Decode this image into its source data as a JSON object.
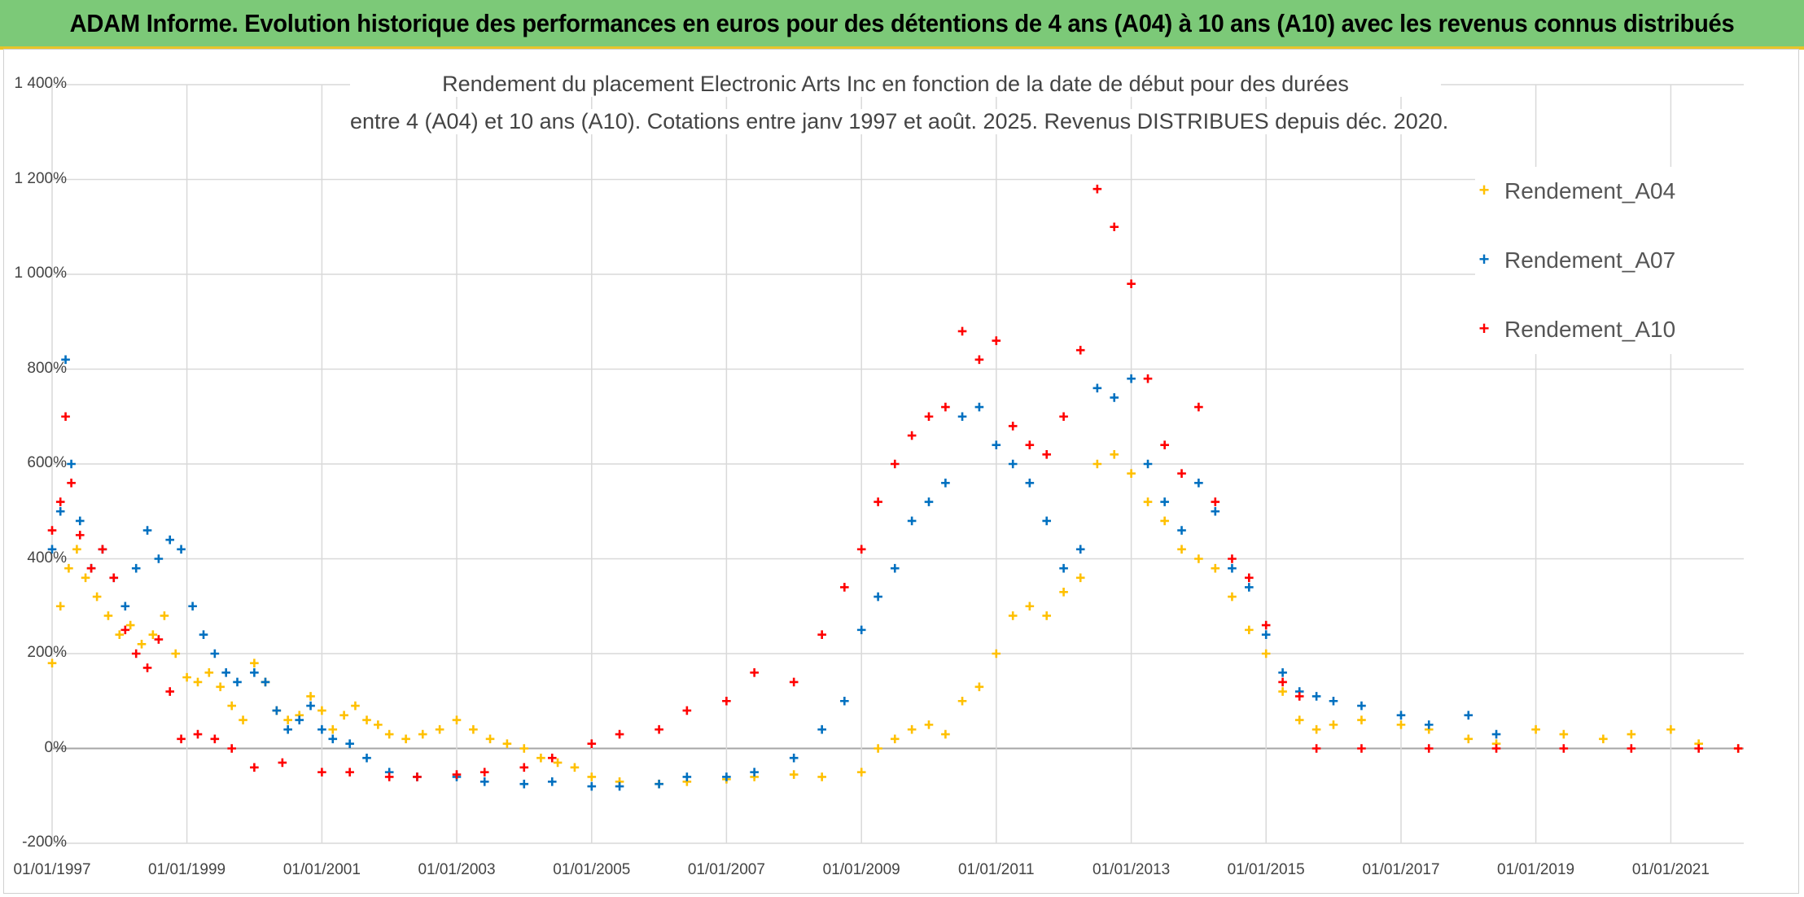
{
  "banner": {
    "title": "ADAM Informe. Evolution historique des performances en euros pour des détentions de 4 ans (A04) à 10 ans (A10) avec les revenus connus distribués"
  },
  "colors": {
    "banner_bg": "#7cc978",
    "banner_border": "#e8c42a",
    "gridline": "#d9d9d9",
    "zero_line": "#a6a6a6"
  },
  "chart_data": {
    "type": "scatter",
    "title_lines": [
      "Rendement du placement Electronic Arts Inc en fonction de la date de début pour des durées",
      "entre 4 (A04) et 10 ans (A10). Cotations entre janv 1997 et août. 2025. Revenus DISTRIBUES depuis déc. 2020."
    ],
    "xlabel": "",
    "ylabel": "",
    "xlim": [
      "1997-01-01",
      "2022-01-31"
    ],
    "ylim": [
      -200,
      1400
    ],
    "y_ticks": [
      {
        "value": 1400,
        "label": "1 400%"
      },
      {
        "value": 1200,
        "label": "1 200%"
      },
      {
        "value": 1000,
        "label": "1 000%"
      },
      {
        "value": 800,
        "label": "800%"
      },
      {
        "value": 600,
        "label": "600%"
      },
      {
        "value": 400,
        "label": "400%"
      },
      {
        "value": 200,
        "label": "200%"
      },
      {
        "value": 0,
        "label": "0%"
      },
      {
        "value": -200,
        "label": "-200%"
      }
    ],
    "x_ticks": [
      {
        "date": "1997-01-01",
        "label": "01/01/1997"
      },
      {
        "date": "1999-01-01",
        "label": "01/01/1999"
      },
      {
        "date": "2001-01-01",
        "label": "01/01/2001"
      },
      {
        "date": "2003-01-01",
        "label": "01/01/2003"
      },
      {
        "date": "2005-01-01",
        "label": "01/01/2005"
      },
      {
        "date": "2007-01-01",
        "label": "01/01/2007"
      },
      {
        "date": "2009-01-01",
        "label": "01/01/2009"
      },
      {
        "date": "2011-01-01",
        "label": "01/01/2011"
      },
      {
        "date": "2013-01-01",
        "label": "01/01/2013"
      },
      {
        "date": "2015-01-01",
        "label": "01/01/2015"
      },
      {
        "date": "2017-01-01",
        "label": "01/01/2017"
      },
      {
        "date": "2019-01-01",
        "label": "01/01/2019"
      },
      {
        "date": "2021-01-01",
        "label": "01/01/2021"
      }
    ],
    "grid": true,
    "legend_position": "top-right",
    "marker": "+",
    "series": [
      {
        "name": "Rendement_A04",
        "color": "#ffc000",
        "points": [
          [
            "1997-01-01",
            180
          ],
          [
            "1997-02-15",
            300
          ],
          [
            "1997-04-01",
            380
          ],
          [
            "1997-05-15",
            420
          ],
          [
            "1997-07-01",
            360
          ],
          [
            "1997-09-01",
            320
          ],
          [
            "1997-11-01",
            280
          ],
          [
            "1998-01-01",
            240
          ],
          [
            "1998-03-01",
            260
          ],
          [
            "1998-05-01",
            220
          ],
          [
            "1998-07-01",
            240
          ],
          [
            "1998-09-01",
            280
          ],
          [
            "1998-11-01",
            200
          ],
          [
            "1999-01-01",
            150
          ],
          [
            "1999-03-01",
            140
          ],
          [
            "1999-05-01",
            160
          ],
          [
            "1999-07-01",
            130
          ],
          [
            "1999-09-01",
            90
          ],
          [
            "1999-11-01",
            60
          ],
          [
            "2000-01-01",
            180
          ],
          [
            "2000-03-01",
            140
          ],
          [
            "2000-05-01",
            80
          ],
          [
            "2000-07-01",
            60
          ],
          [
            "2000-09-01",
            70
          ],
          [
            "2000-11-01",
            110
          ],
          [
            "2001-01-01",
            80
          ],
          [
            "2001-03-01",
            40
          ],
          [
            "2001-05-01",
            70
          ],
          [
            "2001-07-01",
            90
          ],
          [
            "2001-09-01",
            60
          ],
          [
            "2001-11-01",
            50
          ],
          [
            "2002-01-01",
            30
          ],
          [
            "2002-04-01",
            20
          ],
          [
            "2002-07-01",
            30
          ],
          [
            "2002-10-01",
            40
          ],
          [
            "2003-01-01",
            60
          ],
          [
            "2003-04-01",
            40
          ],
          [
            "2003-07-01",
            20
          ],
          [
            "2003-10-01",
            10
          ],
          [
            "2004-01-01",
            0
          ],
          [
            "2004-04-01",
            -20
          ],
          [
            "2004-07-01",
            -30
          ],
          [
            "2004-10-01",
            -40
          ],
          [
            "2005-01-01",
            -60
          ],
          [
            "2005-06-01",
            -70
          ],
          [
            "2006-01-01",
            -75
          ],
          [
            "2006-06-01",
            -70
          ],
          [
            "2007-01-01",
            -65
          ],
          [
            "2007-06-01",
            -60
          ],
          [
            "2008-01-01",
            -55
          ],
          [
            "2008-06-01",
            -60
          ],
          [
            "2009-01-01",
            -50
          ],
          [
            "2009-04-01",
            0
          ],
          [
            "2009-07-01",
            20
          ],
          [
            "2009-10-01",
            40
          ],
          [
            "2010-01-01",
            50
          ],
          [
            "2010-04-01",
            30
          ],
          [
            "2010-07-01",
            100
          ],
          [
            "2010-10-01",
            130
          ],
          [
            "2011-01-01",
            200
          ],
          [
            "2011-04-01",
            280
          ],
          [
            "2011-07-01",
            300
          ],
          [
            "2011-10-01",
            280
          ],
          [
            "2012-01-01",
            330
          ],
          [
            "2012-04-01",
            360
          ],
          [
            "2012-07-01",
            600
          ],
          [
            "2012-10-01",
            620
          ],
          [
            "2013-01-01",
            580
          ],
          [
            "2013-04-01",
            520
          ],
          [
            "2013-07-01",
            480
          ],
          [
            "2013-10-01",
            420
          ],
          [
            "2014-01-01",
            400
          ],
          [
            "2014-04-01",
            380
          ],
          [
            "2014-07-01",
            320
          ],
          [
            "2014-10-01",
            250
          ],
          [
            "2015-01-01",
            200
          ],
          [
            "2015-04-01",
            120
          ],
          [
            "2015-07-01",
            60
          ],
          [
            "2015-10-01",
            40
          ],
          [
            "2016-01-01",
            50
          ],
          [
            "2016-06-01",
            60
          ],
          [
            "2017-01-01",
            50
          ],
          [
            "2017-06-01",
            40
          ],
          [
            "2018-01-01",
            20
          ],
          [
            "2018-06-01",
            10
          ],
          [
            "2019-01-01",
            40
          ],
          [
            "2019-06-01",
            30
          ],
          [
            "2020-01-01",
            20
          ],
          [
            "2020-06-01",
            30
          ],
          [
            "2021-01-01",
            40
          ],
          [
            "2021-06-01",
            10
          ],
          [
            "2022-01-01",
            0
          ]
        ]
      },
      {
        "name": "Rendement_A07",
        "color": "#0070c0",
        "points": [
          [
            "1997-01-01",
            420
          ],
          [
            "1997-02-15",
            500
          ],
          [
            "1997-03-15",
            820
          ],
          [
            "1997-04-15",
            600
          ],
          [
            "1997-06-01",
            480
          ],
          [
            "1997-08-01",
            380
          ],
          [
            "1997-10-01",
            420
          ],
          [
            "1997-12-01",
            360
          ],
          [
            "1998-02-01",
            300
          ],
          [
            "1998-04-01",
            380
          ],
          [
            "1998-06-01",
            460
          ],
          [
            "1998-08-01",
            400
          ],
          [
            "1998-10-01",
            440
          ],
          [
            "1998-12-01",
            420
          ],
          [
            "1999-02-01",
            300
          ],
          [
            "1999-04-01",
            240
          ],
          [
            "1999-06-01",
            200
          ],
          [
            "1999-08-01",
            160
          ],
          [
            "1999-10-01",
            140
          ],
          [
            "2000-01-01",
            160
          ],
          [
            "2000-03-01",
            140
          ],
          [
            "2000-05-01",
            80
          ],
          [
            "2000-07-01",
            40
          ],
          [
            "2000-09-01",
            60
          ],
          [
            "2000-11-01",
            90
          ],
          [
            "2001-01-01",
            40
          ],
          [
            "2001-03-01",
            20
          ],
          [
            "2001-06-01",
            10
          ],
          [
            "2001-09-01",
            -20
          ],
          [
            "2002-01-01",
            -50
          ],
          [
            "2002-06-01",
            -60
          ],
          [
            "2003-01-01",
            -60
          ],
          [
            "2003-06-01",
            -70
          ],
          [
            "2004-01-01",
            -75
          ],
          [
            "2004-06-01",
            -70
          ],
          [
            "2005-01-01",
            -80
          ],
          [
            "2005-06-01",
            -80
          ],
          [
            "2006-01-01",
            -75
          ],
          [
            "2006-06-01",
            -60
          ],
          [
            "2007-01-01",
            -60
          ],
          [
            "2007-06-01",
            -50
          ],
          [
            "2008-01-01",
            -20
          ],
          [
            "2008-06-01",
            40
          ],
          [
            "2008-10-01",
            100
          ],
          [
            "2009-01-01",
            250
          ],
          [
            "2009-04-01",
            320
          ],
          [
            "2009-07-01",
            380
          ],
          [
            "2009-10-01",
            480
          ],
          [
            "2010-01-01",
            520
          ],
          [
            "2010-04-01",
            560
          ],
          [
            "2010-07-01",
            700
          ],
          [
            "2010-10-01",
            720
          ],
          [
            "2011-01-01",
            640
          ],
          [
            "2011-04-01",
            600
          ],
          [
            "2011-07-01",
            560
          ],
          [
            "2011-10-01",
            480
          ],
          [
            "2012-01-01",
            380
          ],
          [
            "2012-04-01",
            420
          ],
          [
            "2012-07-01",
            760
          ],
          [
            "2012-10-01",
            740
          ],
          [
            "2013-01-01",
            780
          ],
          [
            "2013-04-01",
            600
          ],
          [
            "2013-07-01",
            520
          ],
          [
            "2013-10-01",
            460
          ],
          [
            "2014-01-01",
            560
          ],
          [
            "2014-04-01",
            500
          ],
          [
            "2014-07-01",
            380
          ],
          [
            "2014-10-01",
            340
          ],
          [
            "2015-01-01",
            240
          ],
          [
            "2015-04-01",
            160
          ],
          [
            "2015-07-01",
            120
          ],
          [
            "2015-10-01",
            110
          ],
          [
            "2016-01-01",
            100
          ],
          [
            "2016-06-01",
            90
          ],
          [
            "2017-01-01",
            70
          ],
          [
            "2017-06-01",
            50
          ],
          [
            "2018-01-01",
            70
          ],
          [
            "2018-06-01",
            30
          ]
        ]
      },
      {
        "name": "Rendement_A10",
        "color": "#ff0000",
        "points": [
          [
            "1997-01-01",
            460
          ],
          [
            "1997-02-15",
            520
          ],
          [
            "1997-03-15",
            700
          ],
          [
            "1997-04-15",
            560
          ],
          [
            "1997-06-01",
            450
          ],
          [
            "1997-08-01",
            380
          ],
          [
            "1997-10-01",
            420
          ],
          [
            "1997-12-01",
            360
          ],
          [
            "1998-02-01",
            250
          ],
          [
            "1998-04-01",
            200
          ],
          [
            "1998-06-01",
            170
          ],
          [
            "1998-08-01",
            230
          ],
          [
            "1998-10-01",
            120
          ],
          [
            "1998-12-01",
            20
          ],
          [
            "1999-03-01",
            30
          ],
          [
            "1999-06-01",
            20
          ],
          [
            "1999-09-01",
            0
          ],
          [
            "2000-01-01",
            -40
          ],
          [
            "2000-06-01",
            -30
          ],
          [
            "2001-01-01",
            -50
          ],
          [
            "2001-06-01",
            -50
          ],
          [
            "2002-01-01",
            -60
          ],
          [
            "2002-06-01",
            -60
          ],
          [
            "2003-01-01",
            -55
          ],
          [
            "2003-06-01",
            -50
          ],
          [
            "2004-01-01",
            -40
          ],
          [
            "2004-06-01",
            -20
          ],
          [
            "2005-01-01",
            10
          ],
          [
            "2005-06-01",
            30
          ],
          [
            "2006-01-01",
            40
          ],
          [
            "2006-06-01",
            80
          ],
          [
            "2007-01-01",
            100
          ],
          [
            "2007-06-01",
            160
          ],
          [
            "2008-01-01",
            140
          ],
          [
            "2008-06-01",
            240
          ],
          [
            "2008-10-01",
            340
          ],
          [
            "2009-01-01",
            420
          ],
          [
            "2009-04-01",
            520
          ],
          [
            "2009-07-01",
            600
          ],
          [
            "2009-10-01",
            660
          ],
          [
            "2010-01-01",
            700
          ],
          [
            "2010-04-01",
            720
          ],
          [
            "2010-07-01",
            880
          ],
          [
            "2010-10-01",
            820
          ],
          [
            "2011-01-01",
            860
          ],
          [
            "2011-04-01",
            680
          ],
          [
            "2011-07-01",
            640
          ],
          [
            "2011-10-01",
            620
          ],
          [
            "2012-01-01",
            700
          ],
          [
            "2012-04-01",
            840
          ],
          [
            "2012-07-01",
            1180
          ],
          [
            "2012-10-01",
            1100
          ],
          [
            "2013-01-01",
            980
          ],
          [
            "2013-04-01",
            780
          ],
          [
            "2013-07-01",
            640
          ],
          [
            "2013-10-01",
            580
          ],
          [
            "2014-01-01",
            720
          ],
          [
            "2014-04-01",
            520
          ],
          [
            "2014-07-01",
            400
          ],
          [
            "2014-10-01",
            360
          ],
          [
            "2015-01-01",
            260
          ],
          [
            "2015-04-01",
            140
          ],
          [
            "2015-07-01",
            110
          ],
          [
            "2015-10-01",
            0
          ],
          [
            "2016-06-01",
            0
          ],
          [
            "2017-06-01",
            0
          ],
          [
            "2018-06-01",
            0
          ],
          [
            "2019-06-01",
            0
          ],
          [
            "2020-06-01",
            0
          ],
          [
            "2021-06-01",
            0
          ],
          [
            "2022-01-01",
            0
          ]
        ]
      }
    ]
  }
}
